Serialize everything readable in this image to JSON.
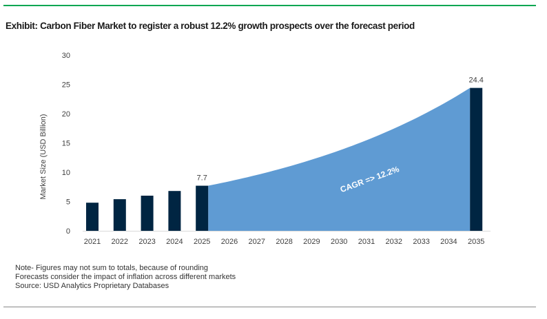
{
  "header": {
    "title": "Exhibit: Carbon Fiber Market to register a robust 12.2% growth prospects over the forecast period"
  },
  "chart_data": {
    "type": "bar",
    "title": "Exhibit: Carbon Fiber Market to register a robust 12.2% growth prospects over the forecast period",
    "xlabel": "",
    "ylabel": "Market Size (USD Billion)",
    "ylim": [
      0,
      30
    ],
    "yticks": [
      0,
      5,
      10,
      15,
      20,
      25,
      30
    ],
    "grid": false,
    "categories": [
      "2021",
      "2022",
      "2023",
      "2024",
      "2025",
      "2026",
      "2027",
      "2028",
      "2029",
      "2030",
      "2031",
      "2032",
      "2033",
      "2034",
      "2035"
    ],
    "bars": [
      {
        "year": "2021",
        "value": 4.8,
        "label": ""
      },
      {
        "year": "2022",
        "value": 5.4,
        "label": ""
      },
      {
        "year": "2023",
        "value": 6.0,
        "label": ""
      },
      {
        "year": "2024",
        "value": 6.8,
        "label": ""
      },
      {
        "year": "2025",
        "value": 7.7,
        "label": "7.7"
      },
      {
        "year": "2035",
        "value": 24.4,
        "label": "24.4"
      }
    ],
    "forecast_area": {
      "from_year": "2025",
      "to_year": "2035",
      "start_value": 7.7,
      "end_value": 24.4,
      "cagr": 0.122,
      "annotation": "CAGR => 12.2%"
    },
    "colors": {
      "bar": "#002542",
      "area": "#5f9bd3",
      "annotation_text": "#ffffff",
      "axis": "#d9d9d9",
      "tick_text": "#404040"
    }
  },
  "notes": [
    "Note- Figures may not sum to totals, because of rounding",
    "Forecasts consider the impact of inflation across different markets",
    "Source: USD Analytics Proprietary Databases"
  ]
}
